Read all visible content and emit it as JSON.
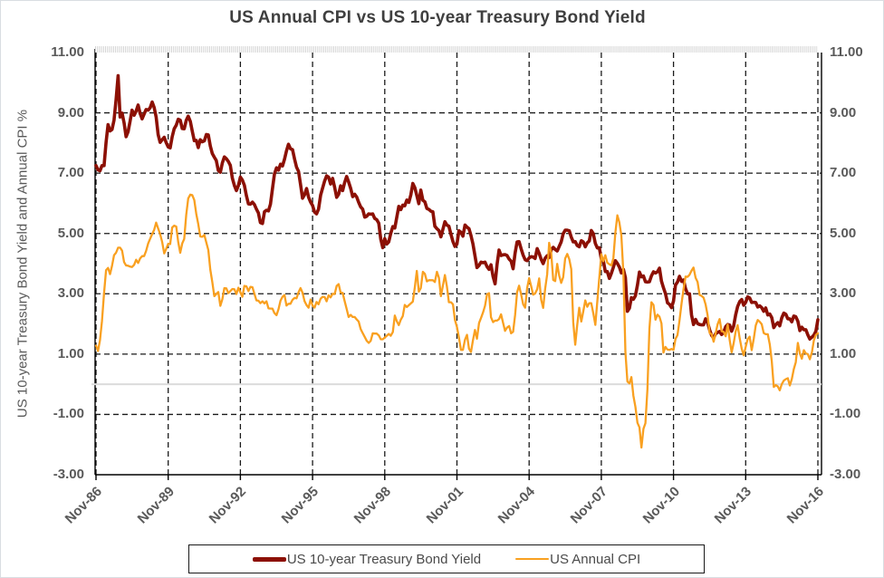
{
  "chart_data": {
    "type": "line",
    "title": "US Annual CPI vs US 10-year Treasury Bond Yield",
    "ylabel": "US 10-year Treasury Bond Yield and Annual CPI %",
    "xlabel": "",
    "ylim": [
      -3,
      11
    ],
    "yticks": [
      11,
      9,
      7,
      5,
      3,
      1,
      -1,
      -3
    ],
    "ytick_labels": [
      "11.00",
      "9.00",
      "7.00",
      "5.00",
      "3.00",
      "1.00",
      "-1.00",
      "-3.00"
    ],
    "grid_yticks": [
      9,
      7,
      5,
      3,
      1,
      -1
    ],
    "grid": "dashed",
    "grid_color": "#1a1a1a",
    "zero_line_color": "#dcdcdc",
    "minor_tick_color": "#d4d4d4",
    "legend_position": "bottom",
    "x_unit": "monthly, Nov-1986 to Nov-2016",
    "x_tick_labels": [
      "Nov-86",
      "Nov-89",
      "Nov-92",
      "Nov-95",
      "Nov-98",
      "Nov-01",
      "Nov-04",
      "Nov-07",
      "Nov-10",
      "Nov-13",
      "Nov-16"
    ],
    "x_tick_indices": [
      0,
      36,
      72,
      108,
      144,
      180,
      216,
      252,
      288,
      324,
      360
    ],
    "series": [
      {
        "name": "US 10-year Treasury Bond Yield",
        "color": "#8c1004",
        "width": 3.6,
        "values": [
          7.25,
          7.11,
          7.08,
          7.25,
          7.25,
          8.02,
          8.61,
          8.4,
          8.45,
          8.76,
          9.42,
          10.23,
          8.86,
          8.99,
          8.67,
          8.21,
          8.37,
          8.72,
          9.09,
          8.92,
          9.06,
          9.26,
          8.98,
          8.8,
          8.96,
          9.11,
          9.09,
          9.17,
          9.36,
          9.18,
          8.86,
          8.28,
          8.02,
          8.11,
          8.19,
          8.01,
          7.87,
          7.84,
          8.21,
          8.47,
          8.59,
          8.79,
          8.76,
          8.48,
          8.47,
          8.75,
          8.89,
          8.72,
          8.39,
          8.08,
          8.09,
          7.85,
          8.11,
          8.04,
          8.07,
          8.28,
          8.27,
          7.9,
          7.65,
          7.53,
          7.42,
          7.09,
          7.03,
          7.34,
          7.54,
          7.48,
          7.39,
          7.26,
          6.84,
          6.59,
          6.42,
          6.59,
          6.87,
          6.77,
          6.6,
          6.26,
          5.98,
          5.97,
          6.04,
          5.96,
          5.81,
          5.68,
          5.36,
          5.33,
          5.72,
          5.77,
          5.75,
          5.97,
          6.48,
          6.97,
          7.18,
          7.1,
          7.3,
          7.24,
          7.46,
          7.74,
          7.96,
          7.81,
          7.78,
          7.47,
          7.2,
          7.06,
          6.63,
          6.17,
          6.28,
          6.49,
          6.2,
          6.04,
          5.93,
          5.71,
          5.65,
          5.81,
          6.27,
          6.51,
          6.74,
          6.91,
          6.87,
          6.64,
          6.83,
          6.53,
          6.2,
          6.3,
          6.58,
          6.42,
          6.69,
          6.89,
          6.71,
          6.49,
          6.22,
          6.3,
          6.21,
          6.03,
          5.88,
          5.81,
          5.54,
          5.57,
          5.65,
          5.64,
          5.65,
          5.5,
          5.46,
          5.34,
          4.81,
          4.53,
          4.83,
          4.65,
          4.72,
          5.0,
          5.23,
          5.18,
          5.54,
          5.9,
          5.79,
          5.94,
          5.92,
          6.11,
          6.03,
          6.28,
          6.66,
          6.52,
          6.26,
          5.99,
          6.44,
          6.1,
          6.05,
          5.83,
          5.8,
          5.74,
          5.72,
          5.24,
          5.16,
          5.1,
          4.89,
          5.14,
          5.39,
          5.28,
          5.24,
          4.97,
          4.73,
          4.57,
          4.65,
          5.09,
          5.04,
          4.91,
          5.28,
          5.21,
          5.16,
          4.93,
          4.65,
          4.26,
          3.87,
          3.94,
          4.05,
          4.03,
          4.05,
          3.9,
          3.81,
          3.96,
          3.57,
          3.33,
          3.98,
          4.45,
          4.27,
          4.29,
          4.3,
          4.27,
          4.15,
          4.08,
          3.83,
          4.35,
          4.72,
          4.73,
          4.5,
          4.28,
          4.13,
          4.1,
          4.19,
          4.23,
          4.22,
          4.17,
          4.5,
          4.34,
          4.14,
          4.0,
          4.18,
          4.26,
          4.2,
          4.46,
          4.54,
          4.47,
          4.42,
          4.57,
          4.72,
          4.99,
          5.11,
          5.11,
          5.09,
          4.88,
          4.72,
          4.73,
          4.6,
          4.56,
          4.76,
          4.72,
          4.56,
          4.69,
          4.75,
          5.1,
          5.0,
          4.67,
          4.52,
          4.53,
          4.15,
          4.1,
          3.74,
          3.74,
          3.51,
          3.68,
          3.88,
          4.1,
          4.01,
          3.89,
          3.69,
          3.81,
          3.53,
          2.42,
          2.52,
          2.87,
          2.82,
          2.93,
          3.29,
          3.72,
          3.56,
          3.59,
          3.4,
          3.39,
          3.4,
          3.59,
          3.73,
          3.69,
          3.73,
          3.85,
          3.42,
          3.2,
          3.01,
          2.7,
          2.65,
          2.54,
          2.76,
          3.29,
          3.39,
          3.58,
          3.41,
          3.46,
          3.17,
          3.0,
          3.0,
          2.3,
          1.98,
          2.15,
          2.01,
          1.98,
          1.97,
          1.97,
          2.17,
          2.05,
          1.8,
          1.62,
          1.53,
          1.68,
          1.72,
          1.75,
          1.65,
          1.72,
          1.91,
          1.98,
          1.96,
          1.76,
          1.93,
          2.3,
          2.58,
          2.74,
          2.81,
          2.62,
          2.72,
          2.9,
          2.86,
          2.71,
          2.72,
          2.71,
          2.56,
          2.6,
          2.54,
          2.42,
          2.53,
          2.3,
          2.33,
          2.21,
          1.88,
          1.98,
          2.04,
          1.94,
          2.2,
          2.36,
          2.32,
          2.17,
          2.17,
          2.07,
          2.26,
          2.24,
          2.09,
          1.78,
          1.89,
          1.81,
          1.81,
          1.64,
          1.5,
          1.56,
          1.63,
          1.76,
          2.14
        ]
      },
      {
        "name": "US Annual CPI",
        "color": "#f9a020",
        "width": 2.3,
        "values": [
          1.28,
          1.1,
          1.46,
          2.1,
          3.03,
          3.78,
          3.86,
          3.65,
          3.93,
          4.28,
          4.36,
          4.53,
          4.53,
          4.43,
          4.05,
          3.94,
          3.93,
          3.9,
          3.89,
          3.96,
          4.13,
          4.02,
          4.17,
          4.25,
          4.25,
          4.42,
          4.67,
          4.83,
          4.98,
          5.12,
          5.36,
          5.17,
          4.98,
          4.71,
          4.34,
          4.49,
          4.66,
          4.65,
          5.2,
          5.26,
          5.23,
          4.71,
          4.36,
          4.67,
          4.82,
          5.62,
          6.16,
          6.29,
          6.27,
          6.11,
          5.65,
          5.31,
          4.9,
          4.89,
          4.95,
          4.7,
          4.45,
          3.8,
          3.39,
          2.92,
          2.99,
          3.06,
          2.6,
          2.82,
          3.19,
          3.18,
          3.02,
          3.09,
          3.16,
          3.15,
          2.99,
          3.2,
          3.05,
          2.9,
          3.26,
          3.25,
          3.09,
          3.23,
          3.22,
          3.0,
          2.78,
          2.77,
          2.69,
          2.75,
          2.68,
          2.75,
          2.52,
          2.51,
          2.51,
          2.36,
          2.29,
          2.49,
          2.77,
          2.9,
          2.96,
          2.61,
          2.67,
          2.67,
          2.8,
          2.86,
          2.85,
          3.05,
          3.19,
          3.04,
          2.76,
          2.62,
          2.54,
          2.81,
          2.61,
          2.54,
          2.73,
          2.65,
          2.84,
          2.9,
          2.89,
          2.75,
          2.95,
          2.88,
          3.0,
          2.99,
          3.26,
          3.32,
          3.04,
          3.03,
          2.76,
          2.5,
          2.23,
          2.3,
          2.23,
          2.23,
          2.15,
          2.08,
          1.83,
          1.7,
          1.57,
          1.44,
          1.37,
          1.44,
          1.69,
          1.68,
          1.68,
          1.62,
          1.49,
          1.49,
          1.55,
          1.61,
          1.67,
          1.61,
          1.73,
          2.28,
          2.09,
          1.96,
          2.14,
          2.26,
          2.63,
          2.56,
          2.62,
          2.68,
          2.74,
          3.22,
          3.76,
          3.07,
          3.19,
          3.73,
          3.66,
          3.41,
          3.45,
          3.45,
          3.45,
          3.39,
          3.73,
          3.53,
          2.92,
          3.27,
          3.62,
          3.25,
          2.72,
          2.72,
          2.65,
          2.13,
          1.9,
          1.55,
          1.14,
          1.14,
          1.48,
          1.64,
          1.18,
          1.07,
          1.46,
          1.8,
          1.51,
          2.03,
          2.2,
          2.38,
          2.6,
          2.98,
          3.02,
          2.22,
          2.06,
          2.11,
          2.11,
          2.16,
          2.32,
          2.04,
          1.77,
          1.88,
          1.93,
          1.69,
          1.74,
          2.29,
          3.05,
          3.27,
          2.99,
          2.65,
          2.54,
          3.19,
          3.52,
          3.26,
          2.97,
          3.01,
          3.15,
          3.51,
          2.8,
          2.53,
          3.17,
          3.64,
          4.69,
          4.35,
          3.46,
          3.42,
          3.99,
          3.6,
          3.36,
          3.55,
          4.17,
          4.32,
          4.15,
          3.82,
          2.06,
          1.31,
          1.97,
          2.54,
          2.08,
          2.42,
          2.78,
          2.57,
          2.69,
          2.69,
          2.36,
          1.97,
          2.76,
          3.54,
          4.31,
          4.08,
          4.28,
          4.03,
          3.98,
          3.94,
          4.18,
          5.02,
          5.6,
          5.37,
          4.94,
          3.66,
          1.07,
          0.09,
          0.03,
          0.24,
          -0.38,
          -0.74,
          -1.28,
          -1.43,
          -2.1,
          -1.48,
          -1.29,
          -0.18,
          1.84,
          2.72,
          2.63,
          2.14,
          2.31,
          2.24,
          2.02,
          1.05,
          1.24,
          1.15,
          1.14,
          1.17,
          1.14,
          1.5,
          1.63,
          2.11,
          2.68,
          3.16,
          3.57,
          3.56,
          3.63,
          3.77,
          3.87,
          3.53,
          3.39,
          2.96,
          2.93,
          2.87,
          2.65,
          2.3,
          1.7,
          1.66,
          1.41,
          1.69,
          1.99,
          2.16,
          1.76,
          1.74,
          1.59,
          1.98,
          1.47,
          1.06,
          1.36,
          1.75,
          1.96,
          1.52,
          1.18,
          0.96,
          1.24,
          1.5,
          1.58,
          1.13,
          1.51,
          1.95,
          2.13,
          2.07,
          1.99,
          1.7,
          1.66,
          1.66,
          1.32,
          0.76,
          -0.09,
          -0.03,
          -0.07,
          -0.2,
          0.0,
          0.12,
          0.17,
          0.2,
          -0.04,
          0.17,
          0.5,
          0.73,
          1.37,
          1.02,
          0.85,
          1.13,
          1.02,
          1.0,
          0.83,
          1.06,
          1.46,
          1.64,
          1.69
        ]
      }
    ]
  }
}
